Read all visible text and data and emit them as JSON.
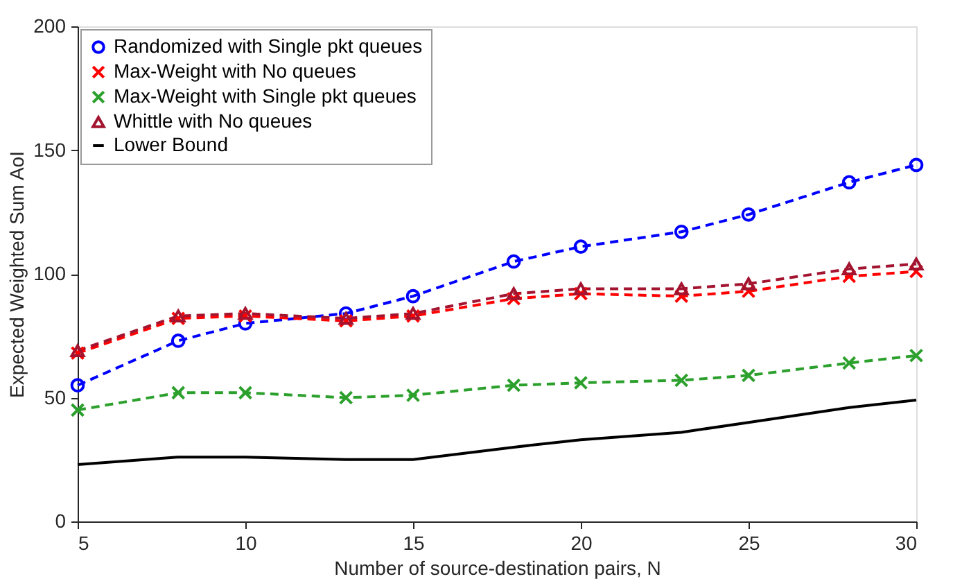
{
  "chart_data": {
    "type": "line",
    "xlabel": "Number of source-destination pairs, N",
    "ylabel": "Expected Weighted Sum AoI",
    "x": [
      5,
      8,
      10,
      13,
      15,
      18,
      20,
      23,
      25,
      28,
      30
    ],
    "xlim": [
      5,
      30
    ],
    "xticks": [
      5,
      10,
      15,
      20,
      25,
      30
    ],
    "ylim": [
      0,
      200
    ],
    "yticks": [
      0,
      50,
      100,
      150,
      200
    ],
    "grid": false,
    "legend": "top left",
    "series": [
      {
        "name": "Randomized with Single pkt queues",
        "color": "#0000ff",
        "marker": "circle",
        "line_style": "dashed",
        "values": [
          55,
          73,
          80,
          84,
          91,
          105,
          111,
          117,
          124,
          137,
          144
        ]
      },
      {
        "name": "Max-Weight with No queues",
        "color": "#ff0000",
        "marker": "cross",
        "line_style": "dashed",
        "values": [
          68,
          82,
          83,
          81,
          83,
          90,
          92,
          91,
          93,
          99,
          101
        ]
      },
      {
        "name": "Max-Weight with Single pkt queues",
        "color": "#2ca02c",
        "marker": "cross",
        "line_style": "dashed",
        "values": [
          45,
          52,
          52,
          50,
          51,
          55,
          56,
          57,
          59,
          64,
          67
        ]
      },
      {
        "name": "Whittle with No queues",
        "color": "#a2142f",
        "marker": "triangle",
        "line_style": "dashed",
        "values": [
          69,
          83,
          84,
          82,
          84,
          92,
          94,
          94,
          96,
          102,
          104
        ]
      },
      {
        "name": "Lower Bound",
        "color": "#000000",
        "marker": "none",
        "line_style": "solid",
        "values": [
          23,
          26,
          26,
          25,
          25,
          30,
          33,
          36,
          40,
          46,
          49
        ]
      }
    ]
  }
}
